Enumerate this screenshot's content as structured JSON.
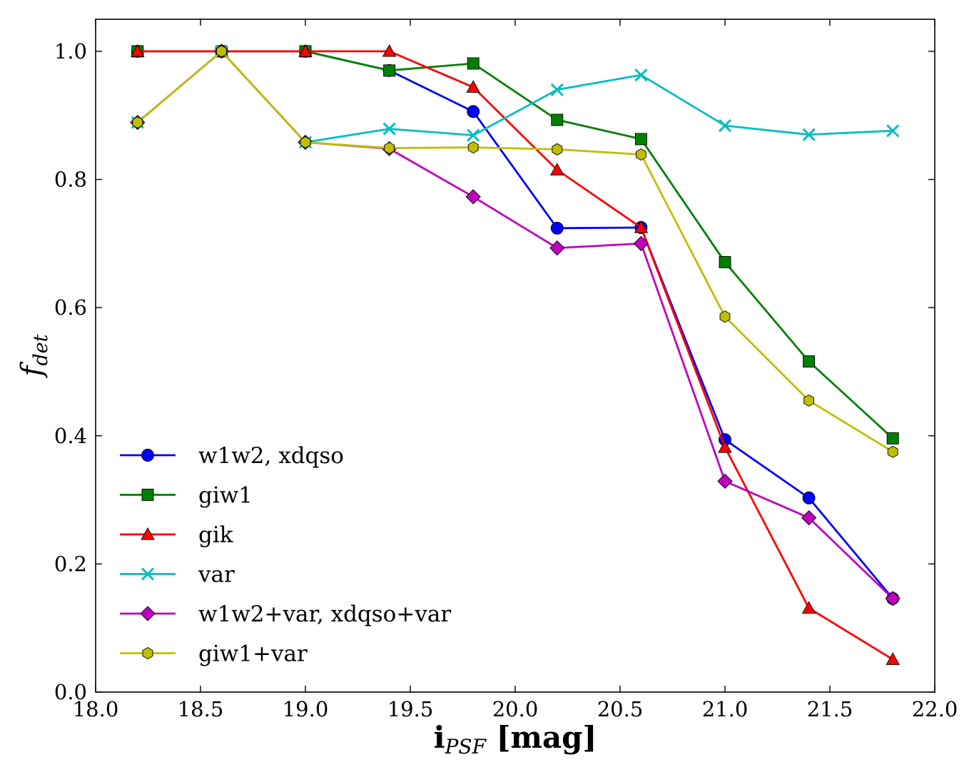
{
  "chart_data": {
    "type": "line",
    "xlabel": {
      "main": "i",
      "sub": "PSF",
      "unit": " [mag]"
    },
    "ylabel": {
      "main": "f",
      "sub": "det"
    },
    "xlim": [
      18.0,
      22.0
    ],
    "ylim": [
      0.0,
      1.05
    ],
    "xticks": [
      18.0,
      18.5,
      19.0,
      19.5,
      20.0,
      20.5,
      21.0,
      21.5,
      22.0
    ],
    "yticks": [
      0.0,
      0.2,
      0.4,
      0.6,
      0.8,
      1.0
    ],
    "xtick_labels": [
      "18.0",
      "18.5",
      "19.0",
      "19.5",
      "20.0",
      "20.5",
      "21.0",
      "21.5",
      "22.0"
    ],
    "ytick_labels": [
      "0.0",
      "0.2",
      "0.4",
      "0.6",
      "0.8",
      "1.0"
    ],
    "grid": false,
    "legend_position": "lower-left",
    "x": [
      18.2,
      18.6,
      19.0,
      19.4,
      19.8,
      20.2,
      20.6,
      21.0,
      21.4,
      21.8
    ],
    "series": [
      {
        "name": "w1w2, xdqso",
        "color": "#0000ff",
        "marker": "circle",
        "values": [
          1.0,
          1.0,
          1.0,
          0.97,
          0.906,
          0.724,
          0.725,
          0.394,
          0.303,
          0.146
        ]
      },
      {
        "name": "giw1",
        "color": "#008000",
        "marker": "square",
        "values": [
          1.0,
          1.0,
          1.0,
          0.97,
          0.981,
          0.893,
          0.863,
          0.671,
          0.516,
          0.396
        ]
      },
      {
        "name": "gik",
        "color": "#ff0000",
        "marker": "triangle",
        "values": [
          1.0,
          1.0,
          1.0,
          1.0,
          0.944,
          0.815,
          0.725,
          0.382,
          0.131,
          0.051
        ]
      },
      {
        "name": "var",
        "color": "#00bfbf",
        "marker": "x",
        "values": [
          0.889,
          1.0,
          0.858,
          0.879,
          0.869,
          0.94,
          0.963,
          0.884,
          0.87,
          0.876
        ]
      },
      {
        "name": "w1w2+var, xdqso+var",
        "color": "#bf00bf",
        "marker": "diamond",
        "values": [
          0.889,
          1.0,
          0.858,
          0.848,
          0.773,
          0.693,
          0.7,
          0.329,
          0.272,
          0.146
        ]
      },
      {
        "name": "giw1+var",
        "color": "#bfbf00",
        "marker": "hexagon",
        "values": [
          0.889,
          1.0,
          0.858,
          0.849,
          0.85,
          0.847,
          0.839,
          0.586,
          0.455,
          0.375
        ]
      }
    ]
  }
}
